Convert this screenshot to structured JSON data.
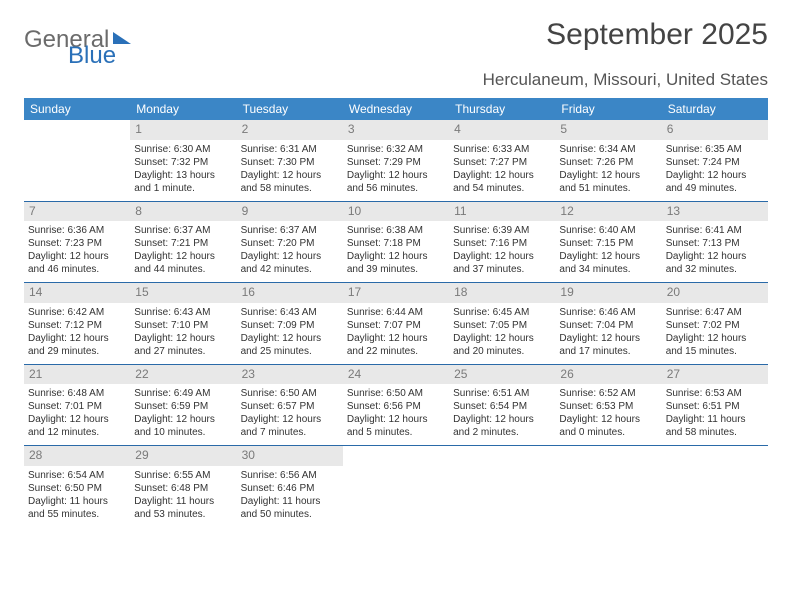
{
  "logo": {
    "text1": "General",
    "text2": "Blue"
  },
  "title": "September 2025",
  "location": "Herculaneum, Missouri, United States",
  "colors": {
    "header_bg": "#3b86c6",
    "header_text": "#ffffff",
    "daynum_bg": "#e8e8e8",
    "daynum_text": "#7a7a7a",
    "row_border": "#2a6aa8",
    "body_text": "#333333",
    "logo_gray": "#6b6b6b",
    "logo_blue": "#2a70b8"
  },
  "day_headers": [
    "Sunday",
    "Monday",
    "Tuesday",
    "Wednesday",
    "Thursday",
    "Friday",
    "Saturday"
  ],
  "weeks": [
    [
      null,
      {
        "n": "1",
        "sr": "6:30 AM",
        "ss": "7:32 PM",
        "dl": "13 hours and 1 minute."
      },
      {
        "n": "2",
        "sr": "6:31 AM",
        "ss": "7:30 PM",
        "dl": "12 hours and 58 minutes."
      },
      {
        "n": "3",
        "sr": "6:32 AM",
        "ss": "7:29 PM",
        "dl": "12 hours and 56 minutes."
      },
      {
        "n": "4",
        "sr": "6:33 AM",
        "ss": "7:27 PM",
        "dl": "12 hours and 54 minutes."
      },
      {
        "n": "5",
        "sr": "6:34 AM",
        "ss": "7:26 PM",
        "dl": "12 hours and 51 minutes."
      },
      {
        "n": "6",
        "sr": "6:35 AM",
        "ss": "7:24 PM",
        "dl": "12 hours and 49 minutes."
      }
    ],
    [
      {
        "n": "7",
        "sr": "6:36 AM",
        "ss": "7:23 PM",
        "dl": "12 hours and 46 minutes."
      },
      {
        "n": "8",
        "sr": "6:37 AM",
        "ss": "7:21 PM",
        "dl": "12 hours and 44 minutes."
      },
      {
        "n": "9",
        "sr": "6:37 AM",
        "ss": "7:20 PM",
        "dl": "12 hours and 42 minutes."
      },
      {
        "n": "10",
        "sr": "6:38 AM",
        "ss": "7:18 PM",
        "dl": "12 hours and 39 minutes."
      },
      {
        "n": "11",
        "sr": "6:39 AM",
        "ss": "7:16 PM",
        "dl": "12 hours and 37 minutes."
      },
      {
        "n": "12",
        "sr": "6:40 AM",
        "ss": "7:15 PM",
        "dl": "12 hours and 34 minutes."
      },
      {
        "n": "13",
        "sr": "6:41 AM",
        "ss": "7:13 PM",
        "dl": "12 hours and 32 minutes."
      }
    ],
    [
      {
        "n": "14",
        "sr": "6:42 AM",
        "ss": "7:12 PM",
        "dl": "12 hours and 29 minutes."
      },
      {
        "n": "15",
        "sr": "6:43 AM",
        "ss": "7:10 PM",
        "dl": "12 hours and 27 minutes."
      },
      {
        "n": "16",
        "sr": "6:43 AM",
        "ss": "7:09 PM",
        "dl": "12 hours and 25 minutes."
      },
      {
        "n": "17",
        "sr": "6:44 AM",
        "ss": "7:07 PM",
        "dl": "12 hours and 22 minutes."
      },
      {
        "n": "18",
        "sr": "6:45 AM",
        "ss": "7:05 PM",
        "dl": "12 hours and 20 minutes."
      },
      {
        "n": "19",
        "sr": "6:46 AM",
        "ss": "7:04 PM",
        "dl": "12 hours and 17 minutes."
      },
      {
        "n": "20",
        "sr": "6:47 AM",
        "ss": "7:02 PM",
        "dl": "12 hours and 15 minutes."
      }
    ],
    [
      {
        "n": "21",
        "sr": "6:48 AM",
        "ss": "7:01 PM",
        "dl": "12 hours and 12 minutes."
      },
      {
        "n": "22",
        "sr": "6:49 AM",
        "ss": "6:59 PM",
        "dl": "12 hours and 10 minutes."
      },
      {
        "n": "23",
        "sr": "6:50 AM",
        "ss": "6:57 PM",
        "dl": "12 hours and 7 minutes."
      },
      {
        "n": "24",
        "sr": "6:50 AM",
        "ss": "6:56 PM",
        "dl": "12 hours and 5 minutes."
      },
      {
        "n": "25",
        "sr": "6:51 AM",
        "ss": "6:54 PM",
        "dl": "12 hours and 2 minutes."
      },
      {
        "n": "26",
        "sr": "6:52 AM",
        "ss": "6:53 PM",
        "dl": "12 hours and 0 minutes."
      },
      {
        "n": "27",
        "sr": "6:53 AM",
        "ss": "6:51 PM",
        "dl": "11 hours and 58 minutes."
      }
    ],
    [
      {
        "n": "28",
        "sr": "6:54 AM",
        "ss": "6:50 PM",
        "dl": "11 hours and 55 minutes."
      },
      {
        "n": "29",
        "sr": "6:55 AM",
        "ss": "6:48 PM",
        "dl": "11 hours and 53 minutes."
      },
      {
        "n": "30",
        "sr": "6:56 AM",
        "ss": "6:46 PM",
        "dl": "11 hours and 50 minutes."
      },
      null,
      null,
      null,
      null
    ]
  ],
  "labels": {
    "sunrise": "Sunrise:",
    "sunset": "Sunset:",
    "daylight": "Daylight:"
  }
}
